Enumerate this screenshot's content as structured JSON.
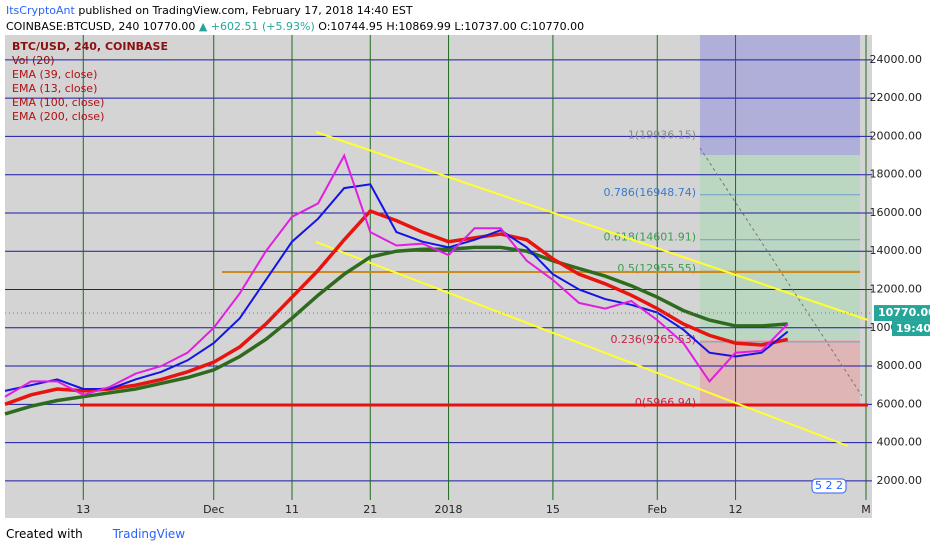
{
  "header": {
    "publisher": "ItsCryptoAnt",
    "published": "published on TradingView.com, February 17, 2018 14:40 EST",
    "symbol": "COINBASE:BTCUSD, 240",
    "last": "10770.00",
    "change": "▲ +602.51 (+5.93%)",
    "open": "O:10744.95",
    "high": "H:10869.99",
    "low": "L:10737.00",
    "close": "C:10770.00"
  },
  "footer": {
    "created": "Created with",
    "brand": "TradingView",
    "badge": "5 2 2"
  },
  "chart_data": {
    "type": "line",
    "legend": [
      "BTC/USD, 240, COINBASE",
      "Vol (20)"
    ],
    "categories": [
      null,
      null,
      null,
      "13",
      null,
      null,
      null,
      null,
      "Dec",
      null,
      null,
      "11",
      null,
      null,
      "21",
      null,
      null,
      "2018",
      null,
      null,
      null,
      "15",
      null,
      null,
      null,
      "Feb",
      null,
      null,
      "12",
      null,
      null,
      null,
      null,
      "M"
    ],
    "series": [
      {
        "name": "EMA (39, close)",
        "color": "#1414e6",
        "values": [
          6700,
          7000,
          7300,
          6800,
          6800,
          7300,
          7700,
          8300,
          9200,
          10500,
          12500,
          14500,
          15700,
          17300,
          17500,
          15000,
          14500,
          14200,
          14600,
          15100,
          14200,
          12800,
          12000,
          11500,
          11200,
          10800,
          9900,
          8700,
          8500,
          8700,
          9800,
          null,
          null,
          null
        ]
      },
      {
        "name": "EMA (13, close)",
        "color": "#e21ee2",
        "values": [
          6400,
          7200,
          7200,
          6500,
          6900,
          7600,
          8000,
          8700,
          10000,
          11800,
          14000,
          15800,
          16500,
          19000,
          15000,
          14300,
          14400,
          13800,
          15200,
          15200,
          13500,
          12500,
          11300,
          11000,
          11400,
          10400,
          9200,
          7200,
          8700,
          8800,
          10200,
          null,
          null,
          null
        ]
      },
      {
        "name": "EMA (100, close)",
        "color": "#e8140f",
        "values": [
          6000,
          6500,
          6800,
          6700,
          6800,
          7000,
          7300,
          7700,
          8200,
          9000,
          10200,
          11600,
          13000,
          14600,
          16100,
          15600,
          15000,
          14500,
          14700,
          14900,
          14600,
          13600,
          12800,
          12300,
          11700,
          11000,
          10200,
          9600,
          9200,
          9100,
          9400,
          null,
          null,
          null
        ]
      },
      {
        "name": "EMA (200, close)",
        "color": "#2e6b1e",
        "values": [
          5500,
          5900,
          6200,
          6400,
          6600,
          6800,
          7100,
          7400,
          7800,
          8500,
          9400,
          10500,
          11700,
          12800,
          13700,
          14000,
          14100,
          14100,
          14200,
          14200,
          14000,
          13500,
          13100,
          12700,
          12200,
          11600,
          10900,
          10400,
          10100,
          10100,
          10200,
          null,
          null,
          null
        ]
      }
    ],
    "ylim": [
      1000,
      25300
    ],
    "yticks": [
      {
        "value": 2000,
        "label": "2000.00"
      },
      {
        "value": 4000,
        "label": "4000.00"
      },
      {
        "value": 6000,
        "label": "6000.00"
      },
      {
        "value": 8000,
        "label": "8000.00"
      },
      {
        "value": 10000,
        "label": "10000.00"
      },
      {
        "value": 12000,
        "label": "12000.00"
      },
      {
        "value": 14000,
        "label": "14000.00"
      },
      {
        "value": 16000,
        "label": "16000.00"
      },
      {
        "value": 18000,
        "label": "18000.00"
      },
      {
        "value": 20000,
        "label": "20000.00"
      },
      {
        "value": 22000,
        "label": "22000.00"
      },
      {
        "value": 24000,
        "label": "24000.00"
      }
    ],
    "last_price": {
      "value": 10770,
      "label": "10770.00"
    },
    "countdown": "19:40",
    "fib": [
      {
        "value": 19936.15,
        "label": "1(19936.15)"
      },
      {
        "value": 16948.74,
        "label": "0.786(16948.74)"
      },
      {
        "value": 14601.91,
        "label": "0.618(14601.91)"
      },
      {
        "value": 12955.55,
        "label": "0.5(12955.55)"
      },
      {
        "value": 9265.53,
        "label": "0.236(9265.53)"
      },
      {
        "value": 5966.94,
        "label": "0(5966.94)"
      }
    ],
    "grid": true
  }
}
